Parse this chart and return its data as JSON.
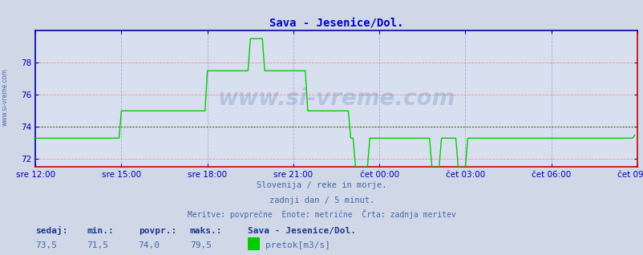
{
  "title": "Sava - Jesenice/Dol.",
  "title_color": "#0000cc",
  "bg_color": "#d0d8e8",
  "plot_bg_color": "#d8e0f0",
  "grid_color_h": "#ff8888",
  "grid_color_v": "#aaaacc",
  "line_color": "#00cc00",
  "avg_line_color": "#008800",
  "border_color_left_top": "#0000aa",
  "border_color_right_bottom": "#cc0000",
  "xlabel_color": "#0000aa",
  "ylabel_color": "#0000aa",
  "x_tick_labels": [
    "sre 12:00",
    "sre 15:00",
    "sre 18:00",
    "sre 21:00",
    "čet 00:00",
    "čet 03:00",
    "čet 06:00",
    "čet 09:00"
  ],
  "x_tick_positions": [
    0,
    36,
    72,
    108,
    144,
    180,
    216,
    252
  ],
  "y_tick_labels": [
    "72",
    "74",
    "76",
    "78"
  ],
  "y_tick_positions": [
    72,
    74,
    76,
    78
  ],
  "ylim": [
    71.5,
    80.0
  ],
  "xlim": [
    0,
    252
  ],
  "avg_value": 74.0,
  "subtitle1": "Slovenija / reke in morje.",
  "subtitle2": "zadnji dan / 5 minut.",
  "subtitle3": "Meritve: povprečne  Enote: metrične  Črta: zadnja meritev",
  "footer_labels": [
    "sedaj:",
    "min.:",
    "povpr.:",
    "maks.:"
  ],
  "footer_values": [
    "73,5",
    "71,5",
    "74,0",
    "79,5"
  ],
  "footer_station": "Sava - Jesenice/Dol.",
  "footer_legend": "pretok[m3/s]",
  "footer_legend_color": "#00cc00",
  "watermark": "www.si-vreme.com",
  "side_watermark": "www.si-vreme.com",
  "data_y": [
    73.3,
    73.3,
    73.3,
    73.3,
    73.3,
    73.3,
    73.3,
    73.3,
    73.3,
    73.3,
    73.3,
    73.3,
    73.3,
    73.3,
    73.3,
    73.3,
    73.3,
    73.3,
    73.3,
    73.3,
    73.3,
    73.3,
    73.3,
    73.3,
    73.3,
    73.3,
    73.3,
    73.3,
    73.3,
    73.3,
    73.3,
    73.3,
    73.3,
    73.3,
    73.3,
    73.3,
    75.0,
    75.0,
    75.0,
    75.0,
    75.0,
    75.0,
    75.0,
    75.0,
    75.0,
    75.0,
    75.0,
    75.0,
    75.0,
    75.0,
    75.0,
    75.0,
    75.0,
    75.0,
    75.0,
    75.0,
    75.0,
    75.0,
    75.0,
    75.0,
    75.0,
    75.0,
    75.0,
    75.0,
    75.0,
    75.0,
    75.0,
    75.0,
    75.0,
    75.0,
    75.0,
    75.0,
    77.5,
    77.5,
    77.5,
    77.5,
    77.5,
    77.5,
    77.5,
    77.5,
    77.5,
    77.5,
    77.5,
    77.5,
    77.5,
    77.5,
    77.5,
    77.5,
    77.5,
    77.5,
    79.5,
    79.5,
    79.5,
    79.5,
    79.5,
    79.5,
    77.5,
    77.5,
    77.5,
    77.5,
    77.5,
    77.5,
    77.5,
    77.5,
    77.5,
    77.5,
    77.5,
    77.5,
    77.5,
    77.5,
    77.5,
    77.5,
    77.5,
    77.5,
    75.0,
    75.0,
    75.0,
    75.0,
    75.0,
    75.0,
    75.0,
    75.0,
    75.0,
    75.0,
    75.0,
    75.0,
    75.0,
    75.0,
    75.0,
    75.0,
    75.0,
    75.0,
    73.3,
    73.3,
    71.5,
    71.5,
    71.5,
    71.5,
    71.5,
    71.5,
    73.3,
    73.3,
    73.3,
    73.3,
    73.3,
    73.3,
    73.3,
    73.3,
    73.3,
    73.3,
    73.3,
    73.3,
    73.3,
    73.3,
    73.3,
    73.3,
    73.3,
    73.3,
    73.3,
    73.3,
    73.3,
    73.3,
    73.3,
    73.3,
    73.3,
    73.3,
    71.5,
    71.5,
    71.5,
    71.5,
    73.3,
    73.3,
    73.3,
    73.3,
    73.3,
    73.3,
    73.3,
    71.5,
    71.5,
    71.5,
    71.5,
    73.3,
    73.3,
    73.3,
    73.3,
    73.3,
    73.3,
    73.3,
    73.3,
    73.3,
    73.3,
    73.3,
    73.3,
    73.3,
    73.3,
    73.3,
    73.3,
    73.3,
    73.3,
    73.3,
    73.3,
    73.3,
    73.3,
    73.3,
    73.3,
    73.3,
    73.3,
    73.3,
    73.3,
    73.3,
    73.3,
    73.3,
    73.3,
    73.3,
    73.3,
    73.3,
    73.3,
    73.3,
    73.3,
    73.3,
    73.3,
    73.3,
    73.3,
    73.3,
    73.3,
    73.3,
    73.3,
    73.3,
    73.3,
    73.3,
    73.3,
    73.3,
    73.3,
    73.3,
    73.3,
    73.3,
    73.3,
    73.3,
    73.3,
    73.3,
    73.3,
    73.3,
    73.3,
    73.3,
    73.3,
    73.3,
    73.3,
    73.3,
    73.3,
    73.3,
    73.3,
    73.5
  ]
}
